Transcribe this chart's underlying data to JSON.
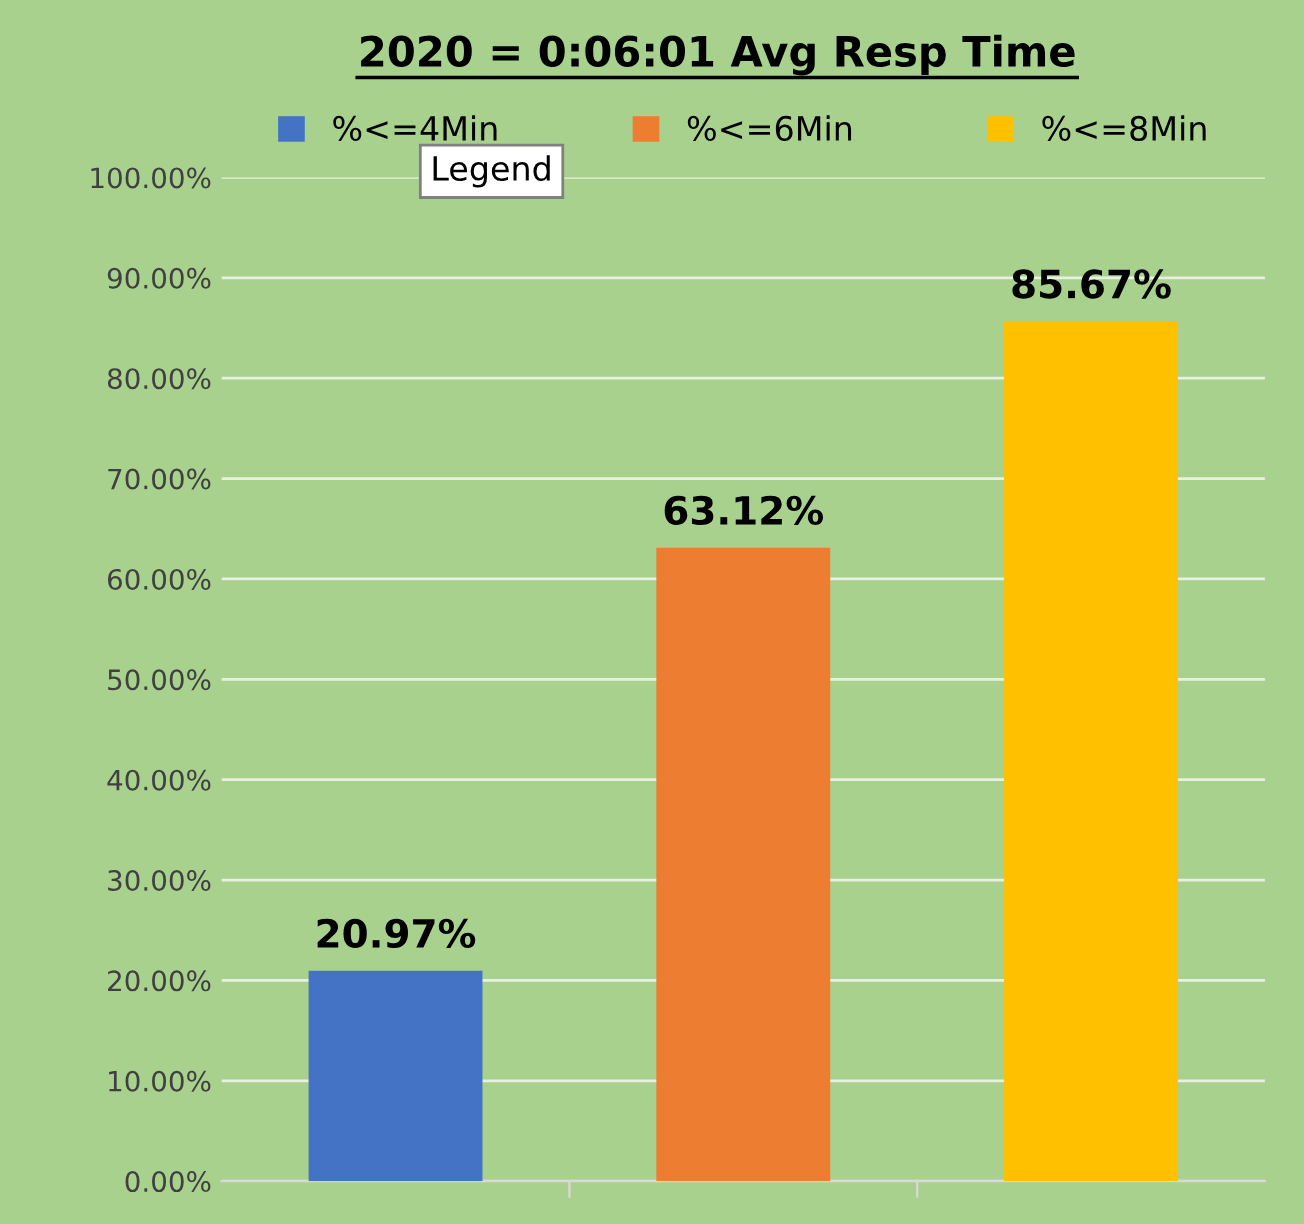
{
  "chart_data": {
    "type": "bar",
    "title": "2020 = 0:06:01 Avg Resp Time",
    "categories": [
      null,
      null,
      null
    ],
    "series": [
      {
        "name": "%<=4Min",
        "color": "#4472c4",
        "values": [
          20.97,
          null,
          null
        ]
      },
      {
        "name": "%<=6Min",
        "color": "#ed7d31",
        "values": [
          null,
          63.12,
          null
        ]
      },
      {
        "name": "%<=8Min",
        "color": "#ffc000",
        "values": [
          null,
          null,
          85.67
        ]
      }
    ],
    "value_labels": [
      "20.97%",
      "63.12%",
      "85.67%"
    ],
    "ylim": [
      0,
      100
    ],
    "yticks": [
      {
        "value": 0,
        "label": "0.00%"
      },
      {
        "value": 10,
        "label": "10.00%"
      },
      {
        "value": 20,
        "label": "20.00%"
      },
      {
        "value": 30,
        "label": "30.00%"
      },
      {
        "value": 40,
        "label": "40.00%"
      },
      {
        "value": 50,
        "label": "50.00%"
      },
      {
        "value": 60,
        "label": "60.00%"
      },
      {
        "value": 70,
        "label": "70.00%"
      },
      {
        "value": 80,
        "label": "80.00%"
      },
      {
        "value": 90,
        "label": "90.00%"
      },
      {
        "value": 100,
        "label": "100.00%"
      }
    ],
    "grid": "y",
    "legend": "top",
    "annotations": [
      "Legend"
    ]
  }
}
